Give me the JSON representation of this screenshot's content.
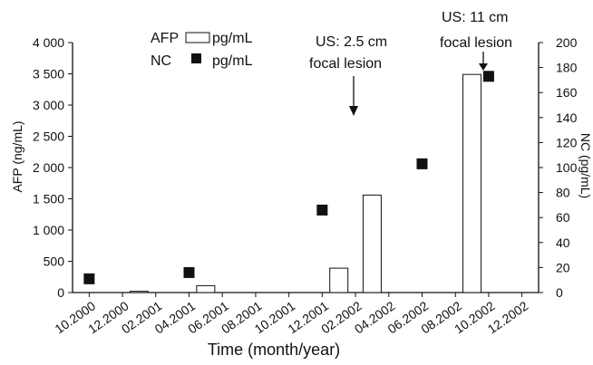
{
  "chart_data": {
    "type": "bar",
    "xlabel": "Time (month/year)",
    "ylabel_left": "AFP (ng/mL)",
    "ylabel_right": "NC (pg/mL)",
    "ylim_left": [
      0,
      4000
    ],
    "ylim_right": [
      0,
      200
    ],
    "yticks_left": [
      "0",
      "500",
      "1 000",
      "1 500",
      "2 000",
      "2 500",
      "3 000",
      "3 500",
      "4 000"
    ],
    "yticks_right": [
      "0",
      "20",
      "40",
      "60",
      "80",
      "100",
      "120",
      "140",
      "160",
      "180",
      "200"
    ],
    "categories": [
      "10.2000",
      "12.2000",
      "02.2001",
      "04.2001",
      "06.2001",
      "08.2001",
      "10.2001",
      "12.2001",
      "02.2002",
      "04.2002",
      "06.2002",
      "08.2002",
      "10.2002",
      "12.2002"
    ],
    "series": [
      {
        "name": "AFP",
        "unit": "pg/mL",
        "kind": "bar",
        "points": [
          {
            "x": "12.2000",
            "y": 20
          },
          {
            "x": "04.2001",
            "y": 110
          },
          {
            "x": "12.2001",
            "y": 390
          },
          {
            "x": "02.2002",
            "y": 1560
          },
          {
            "x": "08.2002",
            "y": 3490
          }
        ]
      },
      {
        "name": "NC",
        "unit": "pg/mL",
        "kind": "marker",
        "points": [
          {
            "x": "10.2000",
            "y": 11
          },
          {
            "x": "04.2001",
            "y": 16
          },
          {
            "x": "12.2001",
            "y": 66
          },
          {
            "x": "06.2002",
            "y": 103
          },
          {
            "x": "10.2002",
            "y": 173
          }
        ]
      }
    ],
    "legend": [
      {
        "label": "AFP",
        "unit": "pg/mL",
        "symbol": "open-bar"
      },
      {
        "label": "NC",
        "unit": "pg/mL",
        "symbol": "filled-square"
      }
    ],
    "annotations": [
      {
        "lines": [
          "US: 2.5 cm",
          "focal lesion"
        ],
        "points_to": "AFP bar at 02.2002"
      },
      {
        "lines": [
          "US: 11 cm",
          "focal lesion"
        ],
        "points_to": "AFP bar at 08.2002"
      }
    ],
    "grid": false
  }
}
